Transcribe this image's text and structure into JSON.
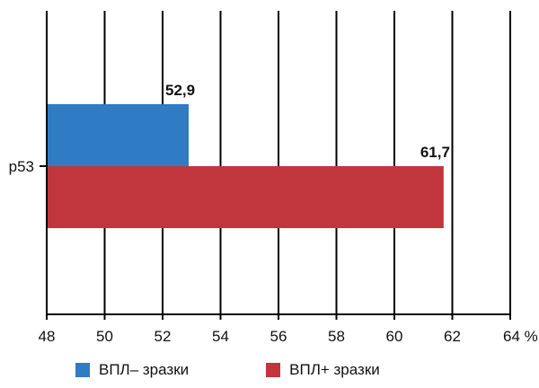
{
  "chart_data": {
    "type": "bar",
    "orientation": "horizontal",
    "categories": [
      "p53"
    ],
    "series": [
      {
        "name": "ВПЛ– зразки",
        "values": [
          52.9
        ],
        "label": "52,9",
        "color": "#2f7bc4"
      },
      {
        "name": "ВПЛ+ зразки",
        "values": [
          61.7
        ],
        "label": "61,7",
        "color": "#c0363c"
      }
    ],
    "xlim": [
      48,
      64
    ],
    "xticks": [
      48,
      50,
      52,
      54,
      56,
      58,
      60,
      62,
      64
    ],
    "xtick_labels": [
      "48",
      "50",
      "52",
      "54",
      "56",
      "58",
      "60",
      "62",
      "64 %"
    ],
    "grid": "vertical",
    "legend": "bottom"
  }
}
